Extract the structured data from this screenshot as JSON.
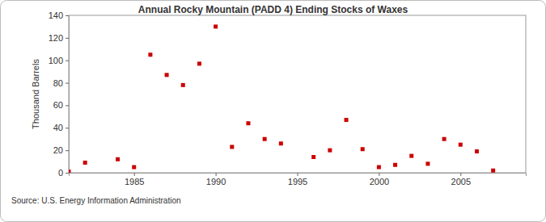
{
  "chart_data": {
    "type": "scatter",
    "title": "Annual Rocky Mountain (PADD 4) Ending Stocks of Waxes",
    "y_label": "Thousand Barrels",
    "source": "Source: U.S. Energy Information Administration",
    "x": [
      1981,
      1982,
      1984,
      1985,
      1986,
      1987,
      1988,
      1989,
      1990,
      1991,
      1992,
      1993,
      1994,
      1996,
      1997,
      1998,
      1999,
      2000,
      2001,
      2002,
      2003,
      2004,
      2005,
      2006,
      2007
    ],
    "values": [
      1,
      9,
      12,
      5,
      105,
      87,
      78,
      97,
      130,
      23,
      44,
      30,
      26,
      14,
      20,
      47,
      21,
      5,
      7,
      15,
      8,
      30,
      25,
      19,
      2
    ],
    "color": "#cc0000",
    "marker": "square",
    "xlim": [
      1981,
      2009
    ],
    "xticks": [
      1985,
      1990,
      1995,
      2000,
      2005
    ],
    "ylim": [
      0,
      140
    ],
    "yticks": [
      0,
      20,
      40,
      60,
      80,
      100,
      120,
      140
    ],
    "grid": false
  }
}
